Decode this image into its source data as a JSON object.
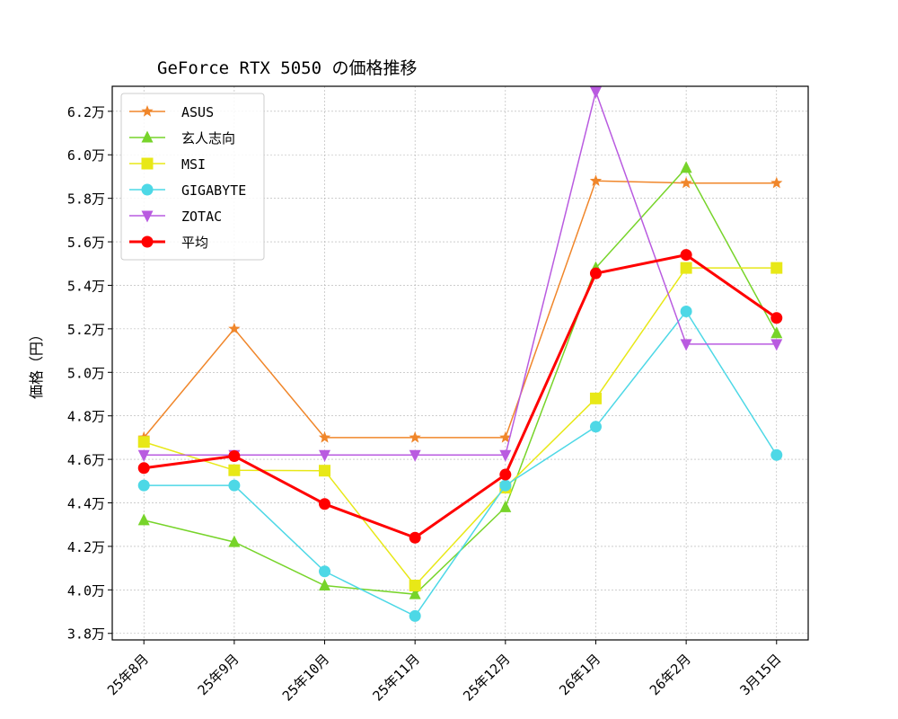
{
  "chart_data": {
    "type": "line",
    "title": "GeForce RTX 5050 の価格推移",
    "xlabel": "",
    "ylabel": "価格（円）",
    "categories": [
      "25年8月",
      "25年9月",
      "25年10月",
      "25年11月",
      "25年12月",
      "26年1月",
      "26年2月",
      "3月15日"
    ],
    "ylim": [
      37700,
      63150
    ],
    "yticks": [
      38000,
      40000,
      42000,
      44000,
      46000,
      48000,
      50000,
      52000,
      54000,
      56000,
      58000,
      60000,
      62000
    ],
    "ytick_labels": [
      "3.8万",
      "4.0万",
      "4.2万",
      "4.4万",
      "4.6万",
      "4.8万",
      "5.0万",
      "5.2万",
      "5.4万",
      "5.6万",
      "5.8万",
      "6.0万",
      "6.2万"
    ],
    "grid": true,
    "legend_position": "top-left",
    "series": [
      {
        "name": "ASUS",
        "color": "#f0862a",
        "marker": "star",
        "values": [
          47000,
          52000,
          47000,
          47000,
          47000,
          58800,
          58700,
          58700
        ]
      },
      {
        "name": "玄人志向",
        "color": "#77d42a",
        "marker": "triangle-up",
        "values": [
          43200,
          42200,
          40200,
          39800,
          43800,
          54800,
          59400,
          51800
        ]
      },
      {
        "name": "MSI",
        "color": "#e8e817",
        "marker": "square",
        "values": [
          46800,
          45500,
          45480,
          40200,
          44700,
          48800,
          54800,
          54800
        ]
      },
      {
        "name": "GIGABYTE",
        "color": "#4dd8e6",
        "marker": "circle",
        "values": [
          44800,
          44800,
          40850,
          38800,
          44800,
          47500,
          52800,
          46200
        ]
      },
      {
        "name": "ZOTAC",
        "color": "#b95be0",
        "marker": "triangle-down",
        "values": [
          46200,
          46200,
          46200,
          46200,
          46200,
          62900,
          51300,
          51300
        ]
      },
      {
        "name": "平均",
        "color": "#ff0000",
        "marker": "circle",
        "bold": true,
        "values": [
          45600,
          46150,
          43950,
          42400,
          45300,
          54550,
          55400,
          52500
        ]
      }
    ]
  }
}
